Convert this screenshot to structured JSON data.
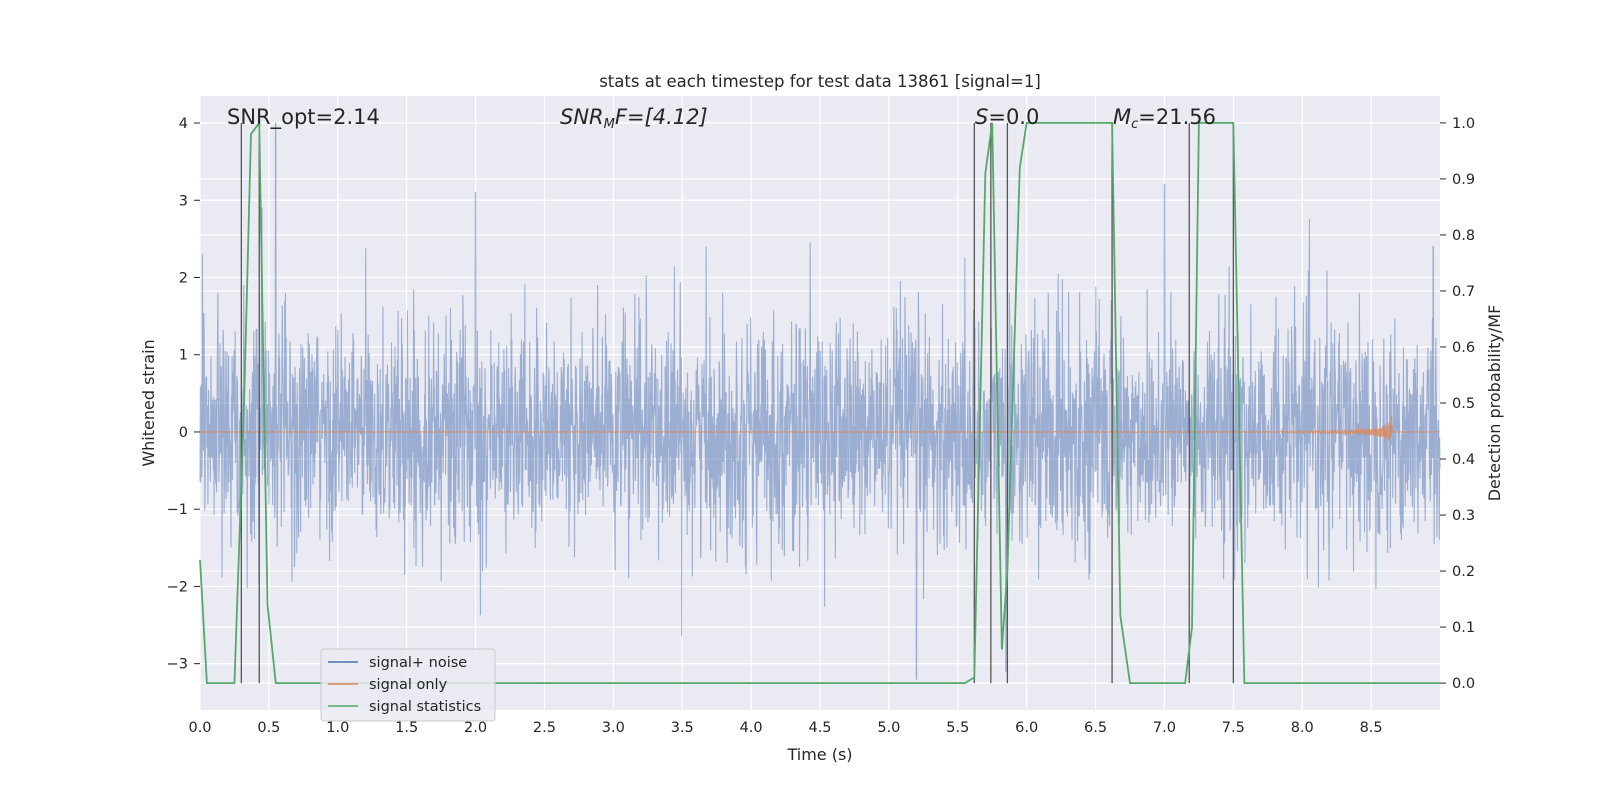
{
  "chart_data": {
    "type": "line",
    "title": "stats at each timestep for test data 13861 [signal=1]",
    "xlabel": "Time (s)",
    "ylabel": "Whitened strain",
    "y2label": "Detection probability/MF",
    "xlim": [
      0,
      9.0
    ],
    "ylim": [
      -3.6,
      4.35
    ],
    "y2lim": [
      -0.048,
      1.048
    ],
    "grid": true,
    "legend_position": "lower-left",
    "xticks": [
      "0.0",
      "0.5",
      "1.0",
      "1.5",
      "2.0",
      "2.5",
      "3.0",
      "3.5",
      "4.0",
      "4.5",
      "5.0",
      "5.5",
      "6.0",
      "6.5",
      "7.0",
      "7.5",
      "8.0",
      "8.5"
    ],
    "yticks": [
      "−3",
      "−2",
      "−1",
      "0",
      "1",
      "2",
      "3",
      "4"
    ],
    "y2ticks": [
      "0.0",
      "0.1",
      "0.2",
      "0.3",
      "0.4",
      "0.5",
      "0.6",
      "0.7",
      "0.8",
      "0.9",
      "1.0"
    ],
    "annotations": {
      "snr_opt": "SNR_opt=2.14",
      "snr_mf_base": "SNR",
      "snr_mf_sub": "M",
      "snr_mf_rest": "F=[4.12]",
      "s_main": "S",
      "s_rest": "=0.0",
      "mc_main": "M",
      "mc_sub": "c",
      "mc_rest": "=21.56"
    },
    "series": [
      {
        "name": "signal+ noise",
        "color": "#4c72b0",
        "description_only": false,
        "noise_std": 0.72,
        "peaks": [
          {
            "x": 0.45,
            "y": 2.9
          },
          {
            "x": 0.55,
            "y": 4.0
          },
          {
            "x": 2.0,
            "y": 3.1
          },
          {
            "x": 5.2,
            "y": -3.2
          },
          {
            "x": 5.85,
            "y": -3.1
          },
          {
            "x": 7.0,
            "y": 3.2
          },
          {
            "x": 8.95,
            "y": 2.4
          }
        ]
      },
      {
        "name": "signal only",
        "color": "#dd8452",
        "chirp_end_time": 8.65,
        "chirp_peak_amplitude": 0.3
      },
      {
        "name": "signal statistics",
        "color": "#55a868",
        "axis": "right",
        "x": [
          0.0,
          0.05,
          0.25,
          0.32,
          0.37,
          0.43,
          0.49,
          0.55,
          5.55,
          5.62,
          5.7,
          5.75,
          5.82,
          5.86,
          5.95,
          6.0,
          6.62,
          6.68,
          6.75,
          7.15,
          7.2,
          7.25,
          7.5,
          7.58,
          7.65,
          9.0
        ],
        "y": [
          0.22,
          0.0,
          0.0,
          0.5,
          0.98,
          1.0,
          0.14,
          0.0,
          0.0,
          0.01,
          0.91,
          1.0,
          0.06,
          0.2,
          0.92,
          1.0,
          1.0,
          0.12,
          0.0,
          0.0,
          0.1,
          1.0,
          1.0,
          0.0,
          0.0,
          0.0
        ]
      }
    ],
    "vertical_lines": [
      0.3,
      0.43,
      5.62,
      5.74,
      5.86,
      6.62,
      7.18,
      7.5
    ]
  },
  "legend": {
    "items": [
      {
        "label": "signal+ noise",
        "color": "#4c72b0"
      },
      {
        "label": "signal only",
        "color": "#dd8452"
      },
      {
        "label": "signal statistics",
        "color": "#55a868"
      }
    ]
  }
}
